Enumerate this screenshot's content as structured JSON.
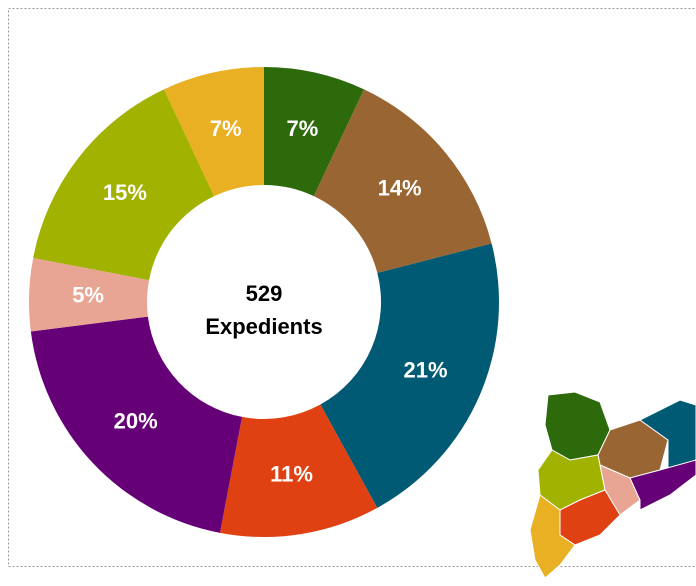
{
  "chart_data": {
    "type": "donut",
    "center_text": [
      "529",
      "Expedients"
    ],
    "values": [
      7,
      14,
      21,
      11,
      20,
      5,
      15,
      7
    ],
    "value_labels": [
      "7%",
      "14%",
      "21%",
      "11%",
      "20%",
      "5%",
      "15%",
      "7%"
    ],
    "colors": [
      "#2d6a0c",
      "#996633",
      "#005a73",
      "#e04112",
      "#660077",
      "#e8a593",
      "#a2b200",
      "#e8b022"
    ]
  }
}
